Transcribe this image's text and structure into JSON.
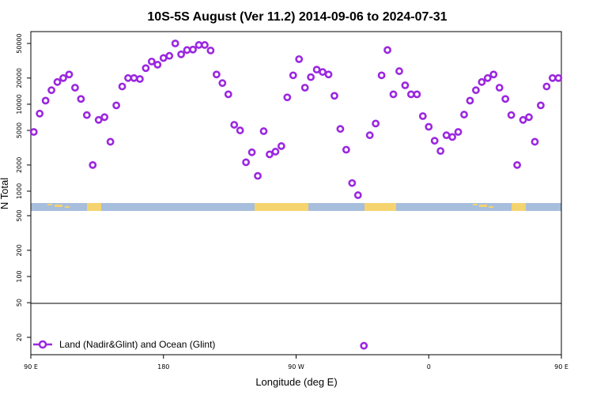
{
  "chart_data": {
    "type": "scatter",
    "title": "10S-5S August (Ver 11.2)   2014-09-06 to 2024-07-31",
    "xlabel": "Longitude (deg E)",
    "ylabel": "N Total",
    "x_ticks": [
      "90 E",
      "180",
      "90 W",
      "0",
      "90 E",
      "180"
    ],
    "y_ticks_upper": [
      "1000",
      "2000",
      "5000",
      "10000",
      "20000",
      "50000"
    ],
    "y_ticks_lower": [
      "20",
      "50",
      "100",
      "200",
      "500"
    ],
    "x_range": [
      90,
      450
    ],
    "log_scale_y": true,
    "split_line_value": 50,
    "map_band": {
      "land_color": "#f5d36e",
      "ocean_color": "#a7bedc"
    },
    "series": [
      {
        "name": "Land (Nadir&Glint) and Ocean (Glint)",
        "color": "#9b27e0",
        "marker": "open-circle",
        "x": [
          92,
          96,
          100,
          104,
          108,
          112,
          116,
          120,
          124,
          128,
          132,
          136,
          140,
          144,
          148,
          152,
          156,
          160,
          164,
          168,
          172,
          176,
          180,
          184,
          188,
          192,
          196,
          200,
          204,
          208,
          212,
          216,
          220,
          224,
          228,
          232,
          236,
          240,
          244,
          248,
          252,
          256,
          260,
          264,
          268,
          272,
          276,
          280,
          284,
          288,
          292,
          296,
          300,
          304,
          308,
          312,
          316,
          320,
          324,
          328,
          332,
          336,
          340,
          344,
          348,
          352,
          356,
          360,
          364,
          368,
          372,
          376,
          380,
          384,
          388,
          392,
          396,
          400,
          404,
          408,
          412,
          416,
          420,
          424,
          428,
          432,
          436,
          440,
          444,
          448
        ],
        "y": [
          4800,
          7800,
          11000,
          14500,
          18000,
          20000,
          22000,
          15500,
          11500,
          7500,
          2000,
          6600,
          7100,
          3700,
          9700,
          16000,
          20000,
          20000,
          19500,
          26000,
          31000,
          28500,
          34000,
          36000,
          50000,
          37500,
          42000,
          42500,
          48000,
          48000,
          41500,
          22000,
          17500,
          13000,
          5800,
          5000,
          2150,
          2800,
          1500,
          4900,
          2650,
          2850,
          3300,
          12000,
          21500,
          33000,
          15500,
          20500,
          25000,
          23500,
          22000,
          12500,
          5200,
          3000,
          1240,
          860,
          16,
          4400,
          6000,
          21500,
          42000,
          13000,
          24000,
          16500,
          13000,
          13000,
          7300,
          5500,
          3800,
          2900,
          4400,
          4200,
          4800,
          7600,
          11000,
          14500,
          18000,
          20000,
          22000,
          15500,
          11500,
          7500,
          2000,
          6600,
          7100,
          3700,
          9700,
          16000,
          20000,
          20000
        ]
      }
    ]
  }
}
